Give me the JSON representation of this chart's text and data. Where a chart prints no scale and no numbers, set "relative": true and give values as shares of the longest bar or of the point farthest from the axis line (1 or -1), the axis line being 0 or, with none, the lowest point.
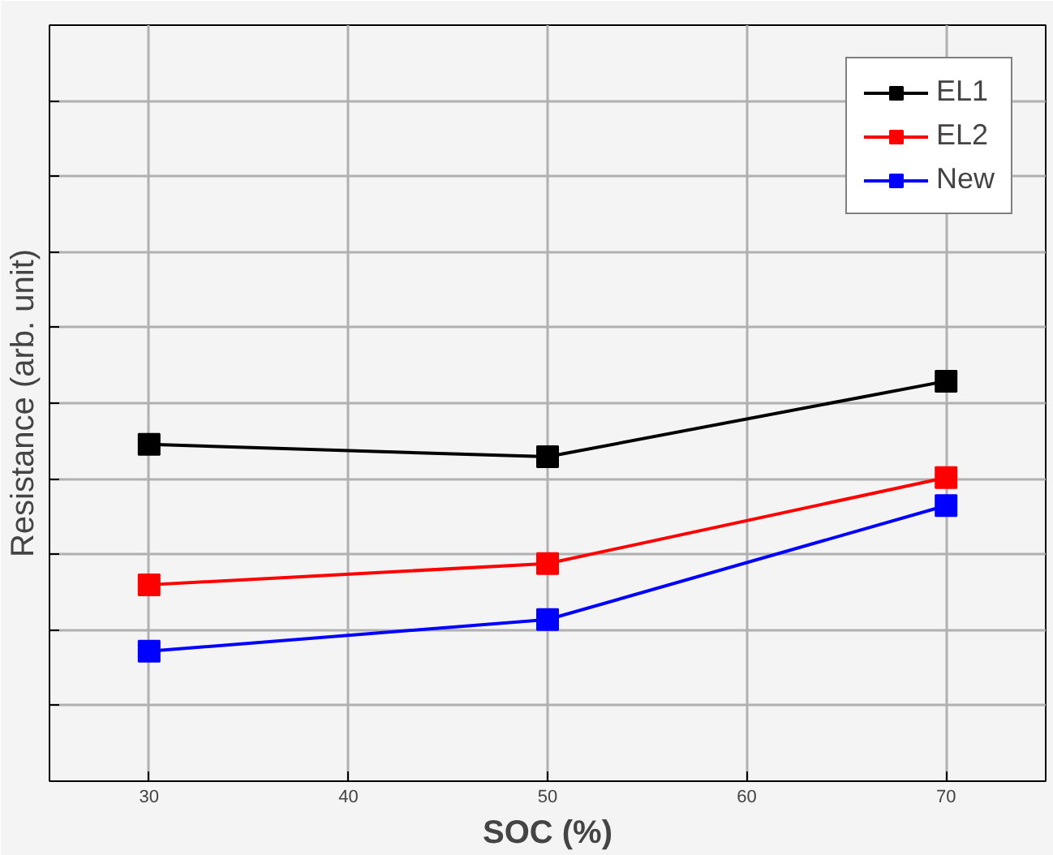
{
  "chart_data": {
    "type": "line",
    "relative": true,
    "xlabel": "SOC (%)",
    "ylabel": "Resistance (arb. unit)",
    "x": [
      30,
      50,
      70
    ],
    "xlim": [
      25,
      75
    ],
    "xticks": [
      30,
      40,
      50,
      60,
      70
    ],
    "grid": true,
    "legend": "top right",
    "marker": "square",
    "line_style": "solid",
    "series": [
      {
        "name": "EL1",
        "color": "#000000",
        "values": [
          0.842,
          0.811,
          1
        ]
      },
      {
        "name": "EL2",
        "color": "#ff0000",
        "values": [
          0.491,
          0.544,
          0.759
        ]
      },
      {
        "name": "New",
        "color": "#0000ff",
        "values": [
          0.325,
          0.404,
          0.689
        ]
      }
    ]
  }
}
